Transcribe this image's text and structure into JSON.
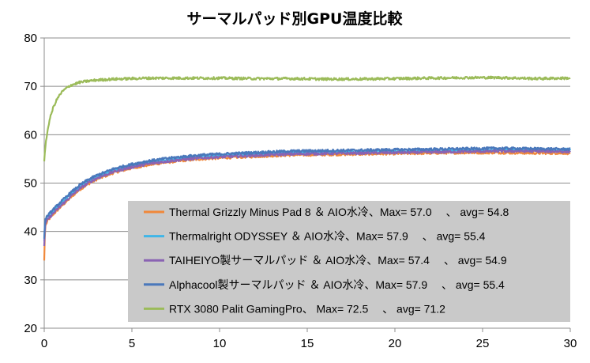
{
  "chart_data": {
    "type": "line",
    "title": "サーマルパッド別GPU温度比較",
    "xlabel": "",
    "ylabel": "",
    "xlim": [
      0,
      30
    ],
    "ylim": [
      20,
      80
    ],
    "xticks": [
      0,
      5,
      10,
      15,
      20,
      25,
      30
    ],
    "yticks": [
      20,
      30,
      40,
      50,
      60,
      70,
      80
    ],
    "grid": "horizontal",
    "legend_position": "bottom-right",
    "series": [
      {
        "name": "Thermal Grizzly Minus Pad 8 ＆ AIO水冷、Max= 57.0 　、 avg= 54.8",
        "color": "#f0883a",
        "x": [
          0,
          0.05,
          0.2,
          0.5,
          1,
          1.5,
          2,
          2.5,
          3,
          4,
          5,
          6,
          7,
          8,
          9,
          10,
          12,
          14,
          16,
          18,
          20,
          22,
          24,
          26,
          28,
          30
        ],
        "y": [
          34,
          41,
          42.3,
          43.5,
          45.3,
          47,
          48.6,
          49.8,
          50.8,
          52.2,
          53.1,
          53.8,
          54.3,
          54.7,
          55,
          55.2,
          55.5,
          55.8,
          55.9,
          56,
          56.1,
          56.2,
          56.3,
          56.3,
          56.2,
          56.2
        ]
      },
      {
        "name": "Thermalright ODYSSEY ＆ AIO水冷、Max= 57.9 　、 avg= 55.4",
        "color": "#3fb6e8",
        "x": [
          0,
          0.05,
          0.2,
          0.5,
          1,
          1.5,
          2,
          2.5,
          3,
          4,
          5,
          6,
          7,
          8,
          9,
          10,
          12,
          14,
          16,
          18,
          20,
          22,
          24,
          26,
          28,
          30
        ],
        "y": [
          38,
          42,
          43,
          44.2,
          46,
          47.7,
          49.2,
          50.4,
          51.3,
          52.7,
          53.6,
          54.3,
          54.8,
          55.2,
          55.5,
          55.7,
          56,
          56.3,
          56.4,
          56.5,
          56.6,
          56.7,
          56.8,
          56.9,
          56.9,
          56.9
        ]
      },
      {
        "name": "TAIHEIYO製サーマルパッド ＆ AIO水冷、Max= 57.4 　、 avg= 54.9",
        "color": "#8a63b3",
        "x": [
          0,
          0.05,
          0.2,
          0.5,
          1,
          1.5,
          2,
          2.5,
          3,
          4,
          5,
          6,
          7,
          8,
          9,
          10,
          12,
          14,
          16,
          18,
          20,
          22,
          24,
          26,
          28,
          30
        ],
        "y": [
          37,
          41.5,
          42.5,
          43.7,
          45.5,
          47.2,
          48.8,
          50,
          51,
          52.4,
          53.3,
          54,
          54.5,
          54.9,
          55.2,
          55.4,
          55.7,
          56,
          56.1,
          56.2,
          56.3,
          56.4,
          56.5,
          56.6,
          56.6,
          56.5
        ]
      },
      {
        "name": "Alphacool製サーマルパッド ＆ AIO水冷、Max= 57.9 　、 avg= 55.4",
        "color": "#4a78bb",
        "x": [
          0,
          0.05,
          0.2,
          0.5,
          1,
          1.5,
          2,
          2.5,
          3,
          4,
          5,
          6,
          7,
          8,
          9,
          10,
          12,
          14,
          16,
          18,
          20,
          22,
          24,
          26,
          28,
          30
        ],
        "y": [
          38.5,
          42.5,
          43.3,
          44.5,
          46.3,
          48,
          49.5,
          50.7,
          51.6,
          53,
          53.9,
          54.6,
          55.1,
          55.5,
          55.8,
          56,
          56.3,
          56.6,
          56.7,
          56.8,
          56.9,
          57,
          57.1,
          57.2,
          57.1,
          57
        ]
      },
      {
        "name": "RTX 3080 Palit GamingPro、 Max= 72.5 　、 avg= 71.2",
        "color": "#9bbb59",
        "x": [
          0,
          0.05,
          0.15,
          0.3,
          0.5,
          0.75,
          1,
          1.25,
          1.5,
          2,
          2.5,
          3,
          4,
          5,
          6,
          8,
          10,
          12,
          14,
          16,
          18,
          20,
          22,
          24,
          26,
          28,
          30
        ],
        "y": [
          54.5,
          57,
          60,
          63,
          65.5,
          67.5,
          68.8,
          69.6,
          70.2,
          70.8,
          71.1,
          71.3,
          71.5,
          71.6,
          71.7,
          71.7,
          71.7,
          71.6,
          71.6,
          71.5,
          71.5,
          71.6,
          71.7,
          71.8,
          71.8,
          71.6,
          71.7
        ]
      }
    ]
  }
}
